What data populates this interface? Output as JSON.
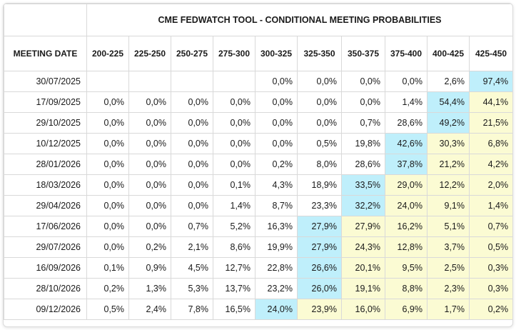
{
  "title": "CME FEDWATCH TOOL - CONDITIONAL MEETING PROBABILITIES",
  "header_label": "MEETING DATE",
  "ranges": [
    "200-225",
    "225-250",
    "250-275",
    "275-300",
    "300-325",
    "325-350",
    "350-375",
    "375-400",
    "400-425",
    "425-450"
  ],
  "colors": {
    "highlight_max": "#bfeffb",
    "highlight_above": "#fbfbd3"
  },
  "rows": [
    {
      "date": "30/07/2025",
      "values": [
        "",
        "",
        "",
        "",
        "0,0%",
        "0,0%",
        "0,0%",
        "0,0%",
        "2,6%",
        "97,4%"
      ],
      "hl": [
        "",
        "",
        "",
        "",
        "",
        "",
        "",
        "",
        "",
        "c"
      ]
    },
    {
      "date": "17/09/2025",
      "values": [
        "0,0%",
        "0,0%",
        "0,0%",
        "0,0%",
        "0,0%",
        "0,0%",
        "0,0%",
        "1,4%",
        "54,4%",
        "44,1%"
      ],
      "hl": [
        "",
        "",
        "",
        "",
        "",
        "",
        "",
        "",
        "c",
        "y"
      ]
    },
    {
      "date": "29/10/2025",
      "values": [
        "0,0%",
        "0,0%",
        "0,0%",
        "0,0%",
        "0,0%",
        "0,0%",
        "0,7%",
        "28,6%",
        "49,2%",
        "21,5%"
      ],
      "hl": [
        "",
        "",
        "",
        "",
        "",
        "",
        "",
        "",
        "c",
        "y"
      ]
    },
    {
      "date": "10/12/2025",
      "values": [
        "0,0%",
        "0,0%",
        "0,0%",
        "0,0%",
        "0,0%",
        "0,5%",
        "19,8%",
        "42,6%",
        "30,3%",
        "6,8%"
      ],
      "hl": [
        "",
        "",
        "",
        "",
        "",
        "",
        "",
        "c",
        "y",
        "y"
      ]
    },
    {
      "date": "28/01/2026",
      "values": [
        "0,0%",
        "0,0%",
        "0,0%",
        "0,0%",
        "0,2%",
        "8,0%",
        "28,6%",
        "37,8%",
        "21,2%",
        "4,2%"
      ],
      "hl": [
        "",
        "",
        "",
        "",
        "",
        "",
        "",
        "c",
        "y",
        "y"
      ]
    },
    {
      "date": "18/03/2026",
      "values": [
        "0,0%",
        "0,0%",
        "0,0%",
        "0,1%",
        "4,3%",
        "18,9%",
        "33,5%",
        "29,0%",
        "12,2%",
        "2,0%"
      ],
      "hl": [
        "",
        "",
        "",
        "",
        "",
        "",
        "c",
        "y",
        "y",
        "y"
      ]
    },
    {
      "date": "29/04/2026",
      "values": [
        "0,0%",
        "0,0%",
        "0,0%",
        "1,4%",
        "8,7%",
        "23,3%",
        "32,2%",
        "24,0%",
        "9,1%",
        "1,4%"
      ],
      "hl": [
        "",
        "",
        "",
        "",
        "",
        "",
        "c",
        "y",
        "y",
        "y"
      ]
    },
    {
      "date": "17/06/2026",
      "values": [
        "0,0%",
        "0,0%",
        "0,7%",
        "5,2%",
        "16,3%",
        "27,9%",
        "27,9%",
        "16,2%",
        "5,1%",
        "0,7%"
      ],
      "hl": [
        "",
        "",
        "",
        "",
        "",
        "c",
        "y",
        "y",
        "y",
        "y"
      ]
    },
    {
      "date": "29/07/2026",
      "values": [
        "0,0%",
        "0,2%",
        "2,1%",
        "8,6%",
        "19,9%",
        "27,9%",
        "24,3%",
        "12,8%",
        "3,7%",
        "0,5%"
      ],
      "hl": [
        "",
        "",
        "",
        "",
        "",
        "c",
        "y",
        "y",
        "y",
        "y"
      ]
    },
    {
      "date": "16/09/2026",
      "values": [
        "0,1%",
        "0,9%",
        "4,5%",
        "12,7%",
        "22,8%",
        "26,6%",
        "20,1%",
        "9,5%",
        "2,5%",
        "0,3%"
      ],
      "hl": [
        "",
        "",
        "",
        "",
        "",
        "c",
        "y",
        "y",
        "y",
        "y"
      ]
    },
    {
      "date": "28/10/2026",
      "values": [
        "0,2%",
        "1,3%",
        "5,3%",
        "13,7%",
        "23,2%",
        "26,0%",
        "19,1%",
        "8,8%",
        "2,3%",
        "0,3%"
      ],
      "hl": [
        "",
        "",
        "",
        "",
        "",
        "c",
        "y",
        "y",
        "y",
        "y"
      ]
    },
    {
      "date": "09/12/2026",
      "values": [
        "0,5%",
        "2,4%",
        "7,8%",
        "16,5%",
        "24,0%",
        "23,9%",
        "16,0%",
        "6,9%",
        "1,7%",
        "0,2%"
      ],
      "hl": [
        "",
        "",
        "",
        "",
        "c",
        "y",
        "y",
        "y",
        "y",
        "y"
      ]
    }
  ]
}
